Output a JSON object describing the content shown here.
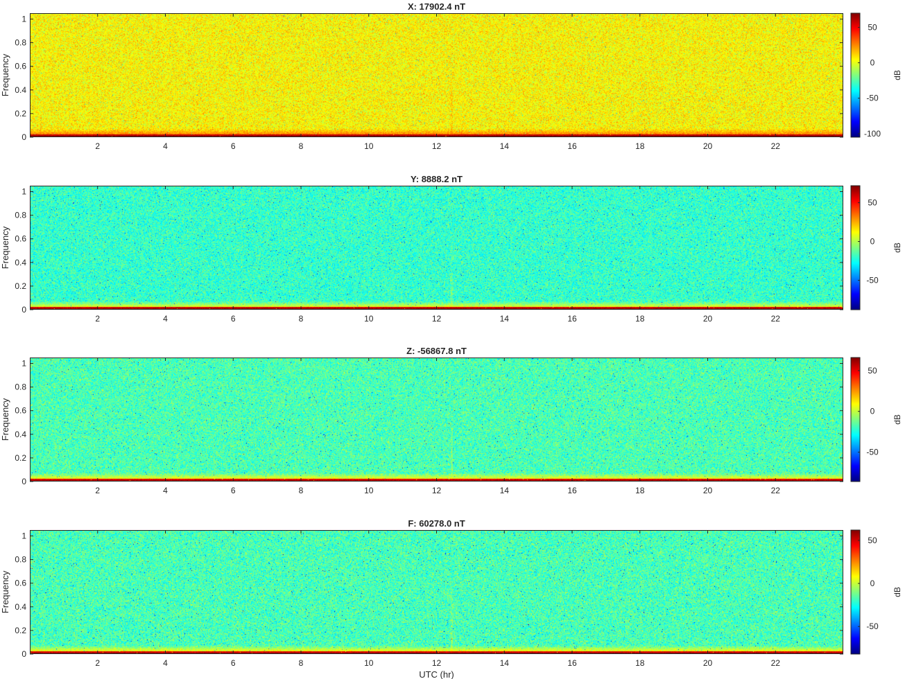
{
  "chart_data": [
    {
      "type": "heatmap",
      "title": "X: 17902.4 nT",
      "ylabel": "Frequency",
      "xlabel": "",
      "xlim": [
        0,
        24
      ],
      "ylim": [
        0,
        1.05
      ],
      "xticks": [
        "2",
        "4",
        "6",
        "8",
        "10",
        "12",
        "14",
        "16",
        "18",
        "20",
        "22"
      ],
      "yticks": [
        "0",
        "0.2",
        "0.4",
        "0.6",
        "0.8",
        "1"
      ],
      "colorbar": {
        "label": "dB",
        "range": [
          -105,
          70
        ],
        "ticks": [
          "50",
          "0",
          "-50",
          "-100"
        ],
        "tick_values": [
          50,
          0,
          -50,
          -100
        ]
      },
      "colormap": "jet",
      "background_db": 5,
      "low_freq_db": 35,
      "bottom_line_db": 70,
      "event_utc_hr": 12.45
    },
    {
      "type": "heatmap",
      "title": "Y: 8888.2 nT",
      "ylabel": "Frequency",
      "xlabel": "",
      "xlim": [
        0,
        24
      ],
      "ylim": [
        0,
        1.05
      ],
      "xticks": [
        "2",
        "4",
        "6",
        "8",
        "10",
        "12",
        "14",
        "16",
        "18",
        "20",
        "22"
      ],
      "yticks": [
        "0",
        "0.2",
        "0.4",
        "0.6",
        "0.8",
        "1"
      ],
      "colorbar": {
        "label": "dB",
        "range": [
          -88,
          72
        ],
        "ticks": [
          "50",
          "0",
          "-50"
        ],
        "tick_values": [
          50,
          0,
          -50
        ]
      },
      "colormap": "jet",
      "background_db": -20,
      "low_freq_db": 20,
      "bottom_line_db": 70,
      "event_utc_hr": 12.45
    },
    {
      "type": "heatmap",
      "title": "Z: -56867.8 nT",
      "ylabel": "Frequency",
      "xlabel": "",
      "xlim": [
        0,
        24
      ],
      "ylim": [
        0,
        1.05
      ],
      "xticks": [
        "2",
        "4",
        "6",
        "8",
        "10",
        "12",
        "14",
        "16",
        "18",
        "20",
        "22"
      ],
      "yticks": [
        "0",
        "0.2",
        "0.4",
        "0.6",
        "0.8",
        "1"
      ],
      "colorbar": {
        "label": "dB",
        "range": [
          -86,
          66
        ],
        "ticks": [
          "50",
          "0",
          "-50"
        ],
        "tick_values": [
          50,
          0,
          -50
        ]
      },
      "colormap": "jet",
      "background_db": -18,
      "low_freq_db": 18,
      "bottom_line_db": 62,
      "event_utc_hr": 12.45
    },
    {
      "type": "heatmap",
      "title": "F: 60278.0 nT",
      "ylabel": "Frequency",
      "xlabel": "UTC (hr)",
      "xlim": [
        0,
        24
      ],
      "ylim": [
        0,
        1.05
      ],
      "xticks": [
        "2",
        "4",
        "6",
        "8",
        "10",
        "12",
        "14",
        "16",
        "18",
        "20",
        "22"
      ],
      "yticks": [
        "0",
        "0.2",
        "0.4",
        "0.6",
        "0.8",
        "1"
      ],
      "colorbar": {
        "label": "dB",
        "range": [
          -82,
          62
        ],
        "ticks": [
          "50",
          "0",
          "-50"
        ],
        "tick_values": [
          50,
          0,
          -50
        ]
      },
      "colormap": "jet",
      "background_db": -18,
      "low_freq_db": 18,
      "bottom_line_db": 60,
      "event_utc_hr": 12.45
    }
  ]
}
